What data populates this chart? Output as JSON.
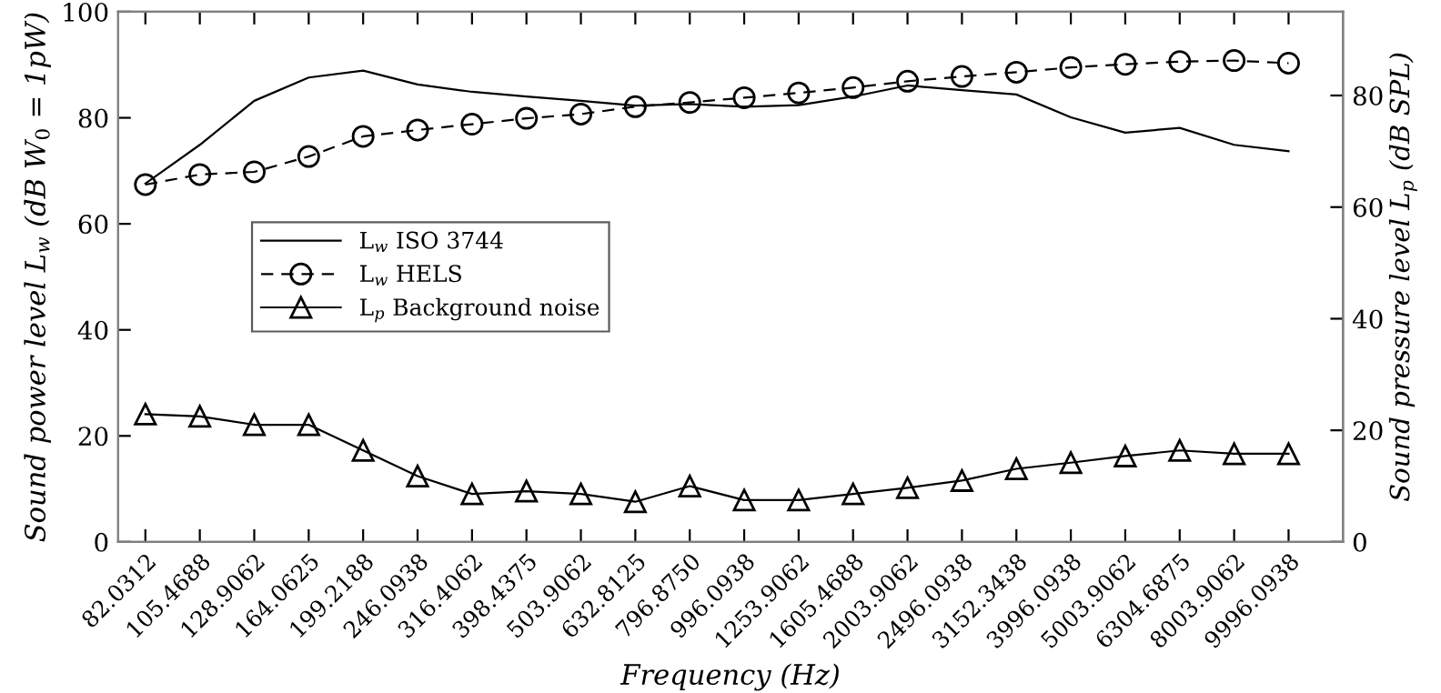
{
  "chart_data": {
    "type": "line",
    "xlabel": "Frequency (Hz)",
    "ylabel": "Sound power level L$_{w}$ (dB W$_{0}$ = 1pW)",
    "y2label": "Sound pressure level L$_{p}$ (dB SPL)",
    "categories": [
      "82.0312",
      "105.4688",
      "128.9062",
      "164.0625",
      "199.2188",
      "246.0938",
      "316.4062",
      "398.4375",
      "503.9062",
      "632.8125",
      "796.8750",
      "996.0938",
      "1253.9062",
      "1605.4688",
      "2003.9062",
      "2496.0938",
      "3152.3438",
      "3996.0938",
      "5003.9062",
      "6304.6875",
      "8003.9062",
      "9996.0938"
    ],
    "series": [
      {
        "name": "L$_{w}$ ISO 3744",
        "color": "#000000",
        "marker": "none",
        "line_style": "solid",
        "values": [
          67.6,
          74.9,
          83.2,
          87.6,
          88.9,
          86.3,
          84.9,
          84,
          83.2,
          82.3,
          82.6,
          82.1,
          82.4,
          84,
          86.1,
          85.2,
          84.4,
          80.1,
          77.2,
          78.1,
          74.9,
          73.7
        ]
      },
      {
        "name": "L$_{w}$ HELS",
        "color": "#000000",
        "marker": "circle",
        "line_style": "dashed",
        "values": [
          67.4,
          69.3,
          69.8,
          72.7,
          76.5,
          77.7,
          78.8,
          79.9,
          80.7,
          82.1,
          82.9,
          83.8,
          84.7,
          85.7,
          86.9,
          87.8,
          88.6,
          89.5,
          90.1,
          90.6,
          90.8,
          90.3
        ]
      },
      {
        "name": "L$_{p}$ Background noise",
        "color": "#000000",
        "marker": "triangle",
        "line_style": "solid",
        "axis": "y2",
        "values": [
          22.9,
          22.5,
          21,
          21,
          16.4,
          11.8,
          8.6,
          9.1,
          8.6,
          7.2,
          10,
          7.5,
          7.5,
          8.6,
          9.7,
          11,
          13.1,
          14.2,
          15.4,
          16.4,
          15.8,
          15.8
        ]
      }
    ],
    "ylim": [
      0,
      100
    ],
    "yticks": [
      0,
      20,
      40,
      60,
      80,
      100
    ],
    "y2lim": [
      0,
      95
    ],
    "y2ticks": [
      0,
      20,
      40,
      60,
      80
    ],
    "grid": false,
    "legend": "left"
  }
}
